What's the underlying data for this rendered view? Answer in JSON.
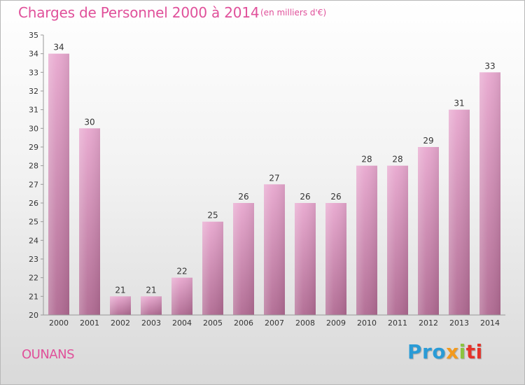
{
  "header": {
    "title": "Charges de Personnel 2000 à 2014",
    "subtitle": "(en milliers d'€)"
  },
  "footer": {
    "city": "OUNANS",
    "logo_parts": [
      "Pro",
      "x",
      "i",
      "ti"
    ]
  },
  "colors": {
    "title": "#e0509a",
    "bar_top": "#e8a8cf",
    "bar_bottom": "#b06a92",
    "axis": "#999999"
  },
  "chart_data": {
    "type": "bar",
    "categories": [
      "2000",
      "2001",
      "2002",
      "2003",
      "2004",
      "2005",
      "2006",
      "2007",
      "2008",
      "2009",
      "2010",
      "2011",
      "2012",
      "2013",
      "2014"
    ],
    "values": [
      34,
      30,
      21,
      21,
      22,
      25,
      26,
      27,
      26,
      26,
      28,
      28,
      29,
      31,
      33
    ],
    "ylim": [
      20,
      35
    ],
    "yticks": [
      20,
      21,
      22,
      23,
      24,
      25,
      26,
      27,
      28,
      29,
      30,
      31,
      32,
      33,
      34,
      35
    ],
    "grid": false,
    "data_labels": true
  }
}
